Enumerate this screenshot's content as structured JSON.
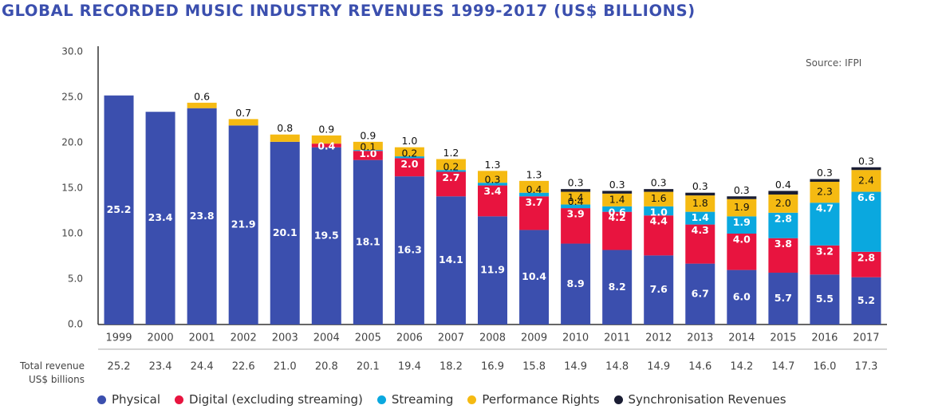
{
  "colors": {
    "physical": "#3b4fae",
    "digital": "#e8143f",
    "streaming": "#0aa8df",
    "performance": "#f5ba12",
    "sync": "#1a1d33"
  },
  "chart_data": {
    "type": "bar",
    "stacked": true,
    "title": "GLOBAL RECORDED MUSIC INDUSTRY REVENUES 1999-2017 (US$ BILLIONS)",
    "source": "Source: IFPI",
    "ylim": [
      0,
      30
    ],
    "yticks": [
      "0.0",
      "5.0",
      "10.0",
      "15.0",
      "20.0",
      "25.0",
      "30.0"
    ],
    "categories": [
      "1999",
      "2000",
      "2001",
      "2002",
      "2003",
      "2004",
      "2005",
      "2006",
      "2007",
      "2008",
      "2009",
      "2010",
      "2011",
      "2012",
      "2013",
      "2014",
      "2015",
      "2016",
      "2017"
    ],
    "series": [
      {
        "key": "physical",
        "name": "Physical",
        "values": [
          25.2,
          23.4,
          23.8,
          21.9,
          20.1,
          19.5,
          18.1,
          16.3,
          14.1,
          11.9,
          10.4,
          8.9,
          8.2,
          7.6,
          6.7,
          6.0,
          5.7,
          5.5,
          5.2
        ],
        "labels": [
          "25.2",
          "23.4",
          "23.8",
          "21.9",
          "20.1",
          "19.5",
          "18.1",
          "16.3",
          "14.1",
          "11.9",
          "10.4",
          "8.9",
          "8.2",
          "7.6",
          "6.7",
          "6.0",
          "5.7",
          "5.5",
          "5.2"
        ]
      },
      {
        "key": "digital",
        "name": "Digital (excluding streaming)",
        "values": [
          0,
          0,
          0,
          0,
          0,
          0.4,
          1.0,
          2.0,
          2.7,
          3.4,
          3.7,
          3.9,
          4.2,
          4.4,
          4.3,
          4.0,
          3.8,
          3.2,
          2.8
        ],
        "labels": [
          null,
          null,
          null,
          null,
          null,
          "0.4",
          "1.0",
          "2.0",
          "2.7",
          "3.4",
          "3.7",
          "3.9",
          "4.2",
          "4.4",
          "4.3",
          "4.0",
          "3.8",
          "3.2",
          "2.8"
        ]
      },
      {
        "key": "streaming",
        "name": "Streaming",
        "values": [
          0,
          0,
          0,
          0,
          0,
          0,
          0.1,
          0.2,
          0.2,
          0.3,
          0.4,
          0.4,
          0.6,
          1.0,
          1.4,
          1.9,
          2.8,
          4.7,
          6.6
        ],
        "labels": [
          null,
          null,
          null,
          null,
          null,
          null,
          "0.1",
          "0.2",
          "0.2",
          "0.3",
          "0.4",
          "0.4",
          "0.6",
          "1.0",
          "1.4",
          "1.9",
          "2.8",
          "4.7",
          "6.6"
        ]
      },
      {
        "key": "performance",
        "name": "Performance Rights",
        "values": [
          0,
          0,
          0.6,
          0.7,
          0.8,
          0.9,
          0.9,
          1.0,
          1.2,
          1.3,
          1.3,
          1.4,
          1.4,
          1.6,
          1.8,
          1.9,
          2.0,
          2.3,
          2.4
        ],
        "labels": [
          null,
          null,
          "0.6",
          "0.7",
          "0.8",
          "0.9",
          "0.9",
          "1.0",
          "1.2",
          "1.3",
          "1.3",
          "1.4",
          "1.4",
          "1.6",
          "1.8",
          "1.9",
          "2.0",
          "2.3",
          "2.4"
        ]
      },
      {
        "key": "sync",
        "name": "Synchronisation Revenues",
        "values": [
          0,
          0,
          0,
          0,
          0,
          0,
          0,
          0,
          0,
          0,
          0,
          0.3,
          0.3,
          0.3,
          0.3,
          0.3,
          0.4,
          0.3,
          0.3
        ],
        "labels": [
          null,
          null,
          null,
          null,
          null,
          null,
          null,
          null,
          null,
          null,
          null,
          "0.3",
          "0.3",
          "0.3",
          "0.3",
          "0.3",
          "0.4",
          "0.3",
          "0.3"
        ]
      }
    ],
    "total_label": [
      "Total revenue",
      "US$ billions"
    ],
    "totals": [
      "25.2",
      "23.4",
      "24.4",
      "22.6",
      "21.0",
      "20.8",
      "20.1",
      "19.4",
      "18.2",
      "16.9",
      "15.8",
      "14.9",
      "14.8",
      "14.9",
      "14.6",
      "14.2",
      "14.7",
      "16.0",
      "17.3"
    ]
  }
}
